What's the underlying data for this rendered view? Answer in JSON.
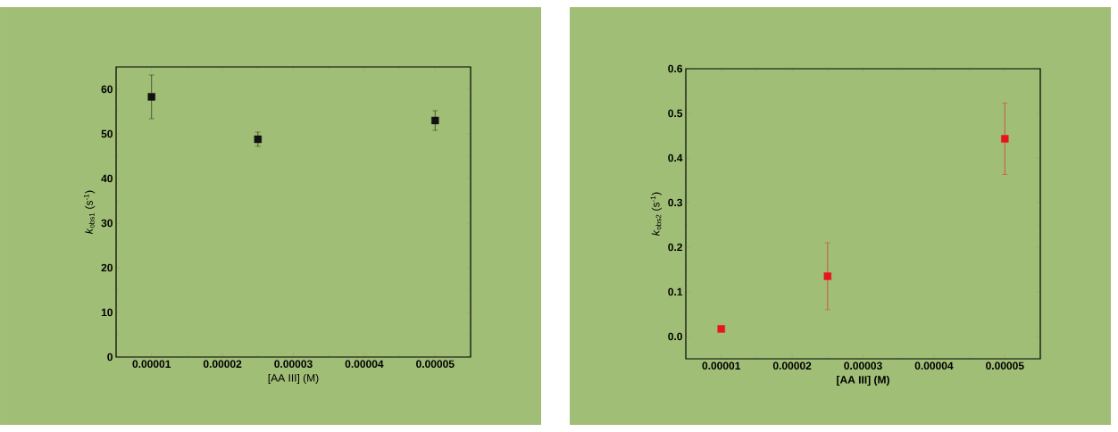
{
  "chart_data": [
    {
      "type": "scatter",
      "xlabel": "[AA III] (M)",
      "ylabel": "*k*$_{obs1}$ (s$^{-1}$)",
      "x": [
        1e-05,
        2.5e-05,
        5e-05
      ],
      "values": [
        58.3,
        48.8,
        53.0
      ],
      "errors": [
        4.9,
        1.6,
        2.2
      ],
      "color": "#111111",
      "marker": "square",
      "xlim": [
        5e-06,
        5.5e-05
      ],
      "ylim": [
        0,
        65
      ],
      "xticks": [
        {
          "value": 1e-05,
          "label": "0.00001"
        },
        {
          "value": 2e-05,
          "label": "0.00002"
        },
        {
          "value": 3e-05,
          "label": "0.00003"
        },
        {
          "value": 4e-05,
          "label": "0.00004"
        },
        {
          "value": 5e-05,
          "label": "0.00005"
        }
      ],
      "yticks": [
        0,
        10,
        20,
        30,
        40,
        50,
        60
      ]
    },
    {
      "type": "scatter",
      "xlabel": "**[AA III] (M)**",
      "ylabel": "*k*$_{obs2}$ (s$^{-1}$)",
      "x": [
        1e-05,
        2.5e-05,
        5e-05
      ],
      "values": [
        0.017,
        0.135,
        0.443
      ],
      "errors": [
        null,
        0.075,
        0.08
      ],
      "color": "#e8141c",
      "marker": "square",
      "xlim": [
        5e-06,
        5.5e-05
      ],
      "ylim": [
        -0.05,
        0.6
      ],
      "xticks": [
        {
          "value": 1e-05,
          "label": "0.00001"
        },
        {
          "value": 2e-05,
          "label": "0.00002"
        },
        {
          "value": 3e-05,
          "label": "0.00003"
        },
        {
          "value": 4e-05,
          "label": "0.00004"
        },
        {
          "value": 5e-05,
          "label": "0.00005"
        }
      ],
      "yticks": [
        {
          "value": 0,
          "label": "0.0"
        },
        {
          "value": 0.1,
          "label": "0.1"
        },
        {
          "value": 0.2,
          "label": "0.2"
        },
        {
          "value": 0.3,
          "label": "0.3"
        },
        {
          "value": 0.4,
          "label": "0.4"
        },
        {
          "value": 0.5,
          "label": "0.5"
        },
        {
          "value": 0.6,
          "label": "0.6"
        }
      ]
    }
  ]
}
